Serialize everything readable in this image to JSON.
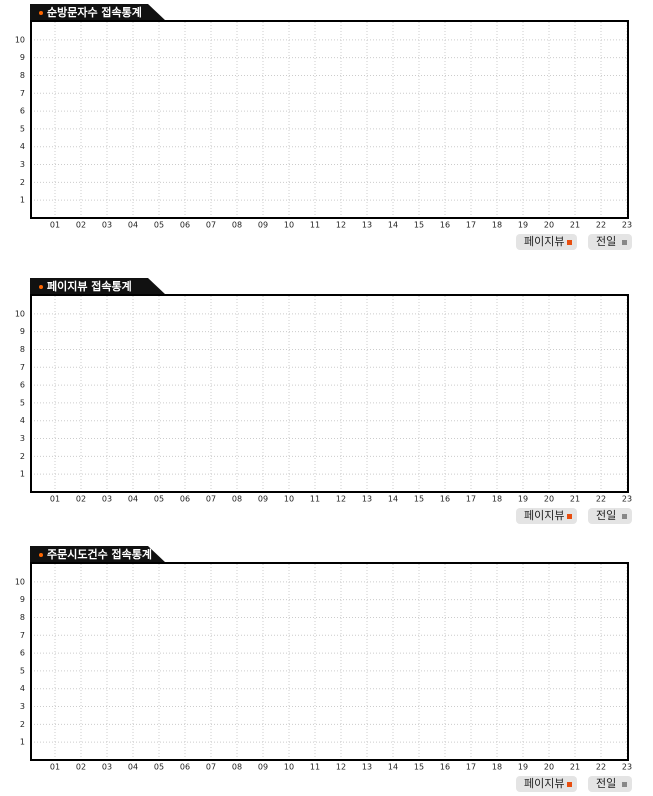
{
  "chart_data": [
    {
      "type": "line",
      "title": "순방문자수 접속통계",
      "categories": [
        "01",
        "02",
        "03",
        "04",
        "05",
        "06",
        "07",
        "08",
        "09",
        "10",
        "11",
        "12",
        "13",
        "14",
        "15",
        "16",
        "17",
        "18",
        "19",
        "20",
        "21",
        "22",
        "23"
      ],
      "series": [
        {
          "name": "페이지뷰",
          "color": "#e84e0f"
        },
        {
          "name": "전일",
          "color": "#888888"
        }
      ],
      "ylim": [
        0,
        11
      ],
      "yticks": [
        1,
        2,
        3,
        4,
        5,
        6,
        7,
        8,
        9,
        10
      ],
      "grid": true
    },
    {
      "type": "line",
      "title": "페이지뷰 접속통계",
      "categories": [
        "01",
        "02",
        "03",
        "04",
        "05",
        "06",
        "07",
        "08",
        "09",
        "10",
        "11",
        "12",
        "13",
        "14",
        "15",
        "16",
        "17",
        "18",
        "19",
        "20",
        "21",
        "22",
        "23"
      ],
      "series": [
        {
          "name": "페이지뷰",
          "color": "#e84e0f"
        },
        {
          "name": "전일",
          "color": "#888888"
        }
      ],
      "ylim": [
        0,
        11
      ],
      "yticks": [
        1,
        2,
        3,
        4,
        5,
        6,
        7,
        8,
        9,
        10
      ],
      "grid": true
    },
    {
      "type": "line",
      "title": "주문시도건수 접속통계",
      "categories": [
        "01",
        "02",
        "03",
        "04",
        "05",
        "06",
        "07",
        "08",
        "09",
        "10",
        "11",
        "12",
        "13",
        "14",
        "15",
        "16",
        "17",
        "18",
        "19",
        "20",
        "21",
        "22",
        "23"
      ],
      "series": [
        {
          "name": "페이지뷰",
          "color": "#e84e0f"
        },
        {
          "name": "전일",
          "color": "#888888"
        }
      ],
      "ylim": [
        0,
        11
      ],
      "yticks": [
        1,
        2,
        3,
        4,
        5,
        6,
        7,
        8,
        9,
        10
      ],
      "grid": true
    }
  ]
}
